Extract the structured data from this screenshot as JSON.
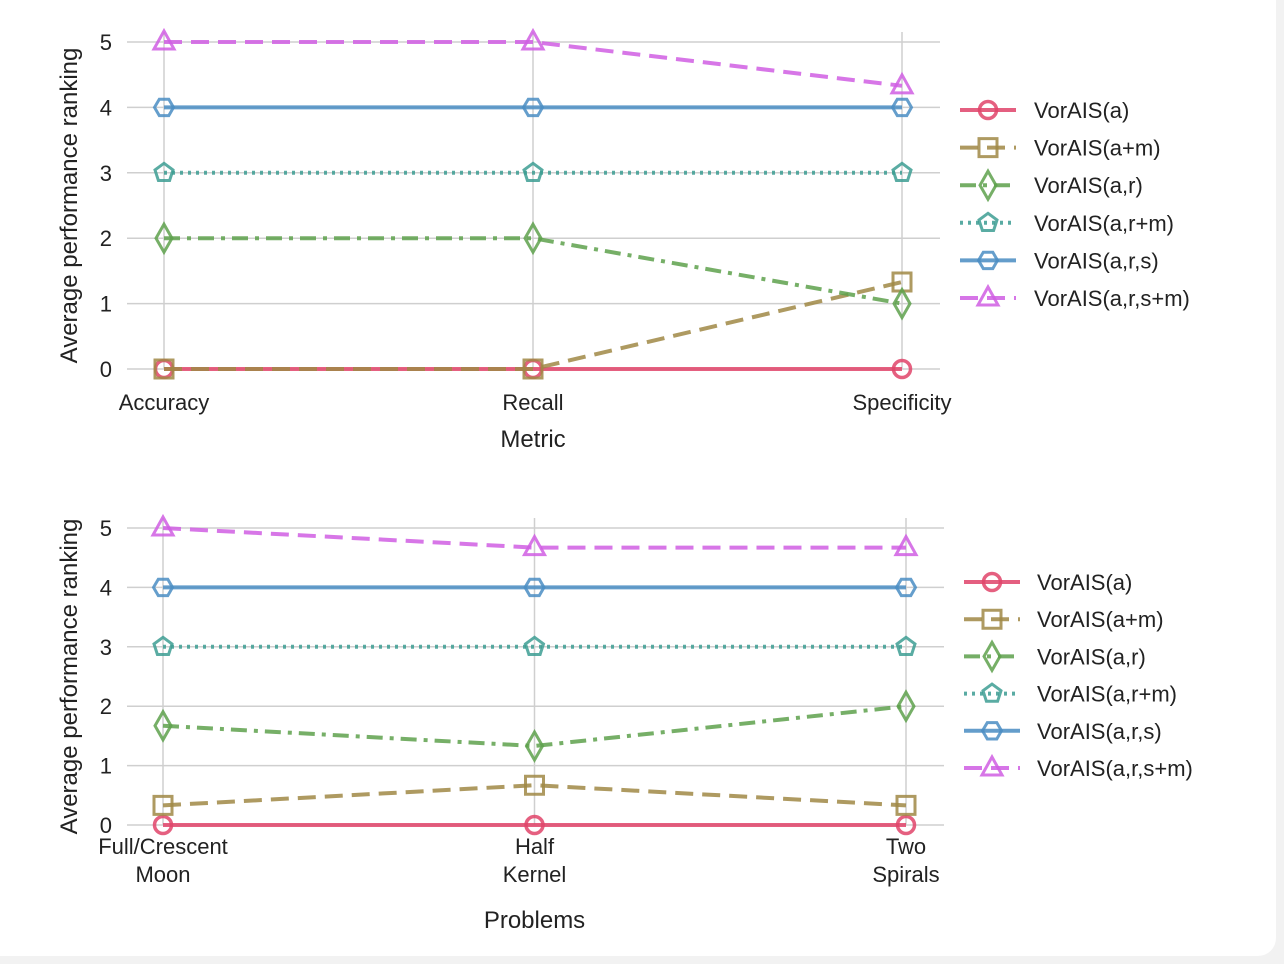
{
  "colors": {
    "VorAIS(a)": "#e0446a",
    "VorAIS(a+m)": "#a08845",
    "VorAIS(a,r)": "#5ea14c",
    "VorAIS(a,r+m)": "#3d9d93",
    "VorAIS(a,r,s)": "#4a8dc3",
    "VorAIS(a,r,s+m)": "#d05ee3"
  },
  "chart_data": [
    {
      "type": "line",
      "categories": [
        "Accuracy",
        "Recall",
        "Specificity"
      ],
      "xlabel": "Metric",
      "ylabel": "Average performance ranking",
      "ylim": [
        0,
        5
      ],
      "yticks": [
        "0",
        "1",
        "2",
        "3",
        "4",
        "5"
      ],
      "grid": true,
      "legend_position": "right",
      "series": [
        {
          "name": "VorAIS(a)",
          "values": [
            0,
            0,
            0
          ],
          "marker": "circle",
          "dash": "solid"
        },
        {
          "name": "VorAIS(a+m)",
          "values": [
            0,
            0,
            1.33
          ],
          "marker": "square",
          "dash": "dashed"
        },
        {
          "name": "VorAIS(a,r)",
          "values": [
            2,
            2,
            1
          ],
          "marker": "diamond",
          "dash": "dashdot"
        },
        {
          "name": "VorAIS(a,r+m)",
          "values": [
            3,
            3,
            3
          ],
          "marker": "pentagon",
          "dash": "dotted"
        },
        {
          "name": "VorAIS(a,r,s)",
          "values": [
            4,
            4,
            4
          ],
          "marker": "hexagon",
          "dash": "solid"
        },
        {
          "name": "VorAIS(a,r,s+m)",
          "values": [
            5,
            5,
            4.33
          ],
          "marker": "triangle",
          "dash": "dashed"
        }
      ]
    },
    {
      "type": "line",
      "categories": [
        "Full/Crescent\nMoon",
        "Half\nKernel",
        "Two\nSpirals"
      ],
      "xlabel": "Problems",
      "ylabel": "Average performance ranking",
      "ylim": [
        0,
        5
      ],
      "yticks": [
        "0",
        "1",
        "2",
        "3",
        "4",
        "5"
      ],
      "grid": true,
      "legend_position": "right",
      "series": [
        {
          "name": "VorAIS(a)",
          "values": [
            0,
            0,
            0
          ],
          "marker": "circle",
          "dash": "solid"
        },
        {
          "name": "VorAIS(a+m)",
          "values": [
            0.33,
            0.67,
            0.33
          ],
          "marker": "square",
          "dash": "dashed"
        },
        {
          "name": "VorAIS(a,r)",
          "values": [
            1.67,
            1.33,
            2
          ],
          "marker": "diamond",
          "dash": "dashdot"
        },
        {
          "name": "VorAIS(a,r+m)",
          "values": [
            3,
            3,
            3
          ],
          "marker": "pentagon",
          "dash": "dotted"
        },
        {
          "name": "VorAIS(a,r,s)",
          "values": [
            4,
            4,
            4
          ],
          "marker": "hexagon",
          "dash": "solid"
        },
        {
          "name": "VorAIS(a,r,s+m)",
          "values": [
            5,
            4.67,
            4.67
          ],
          "marker": "triangle",
          "dash": "dashed"
        }
      ]
    }
  ]
}
